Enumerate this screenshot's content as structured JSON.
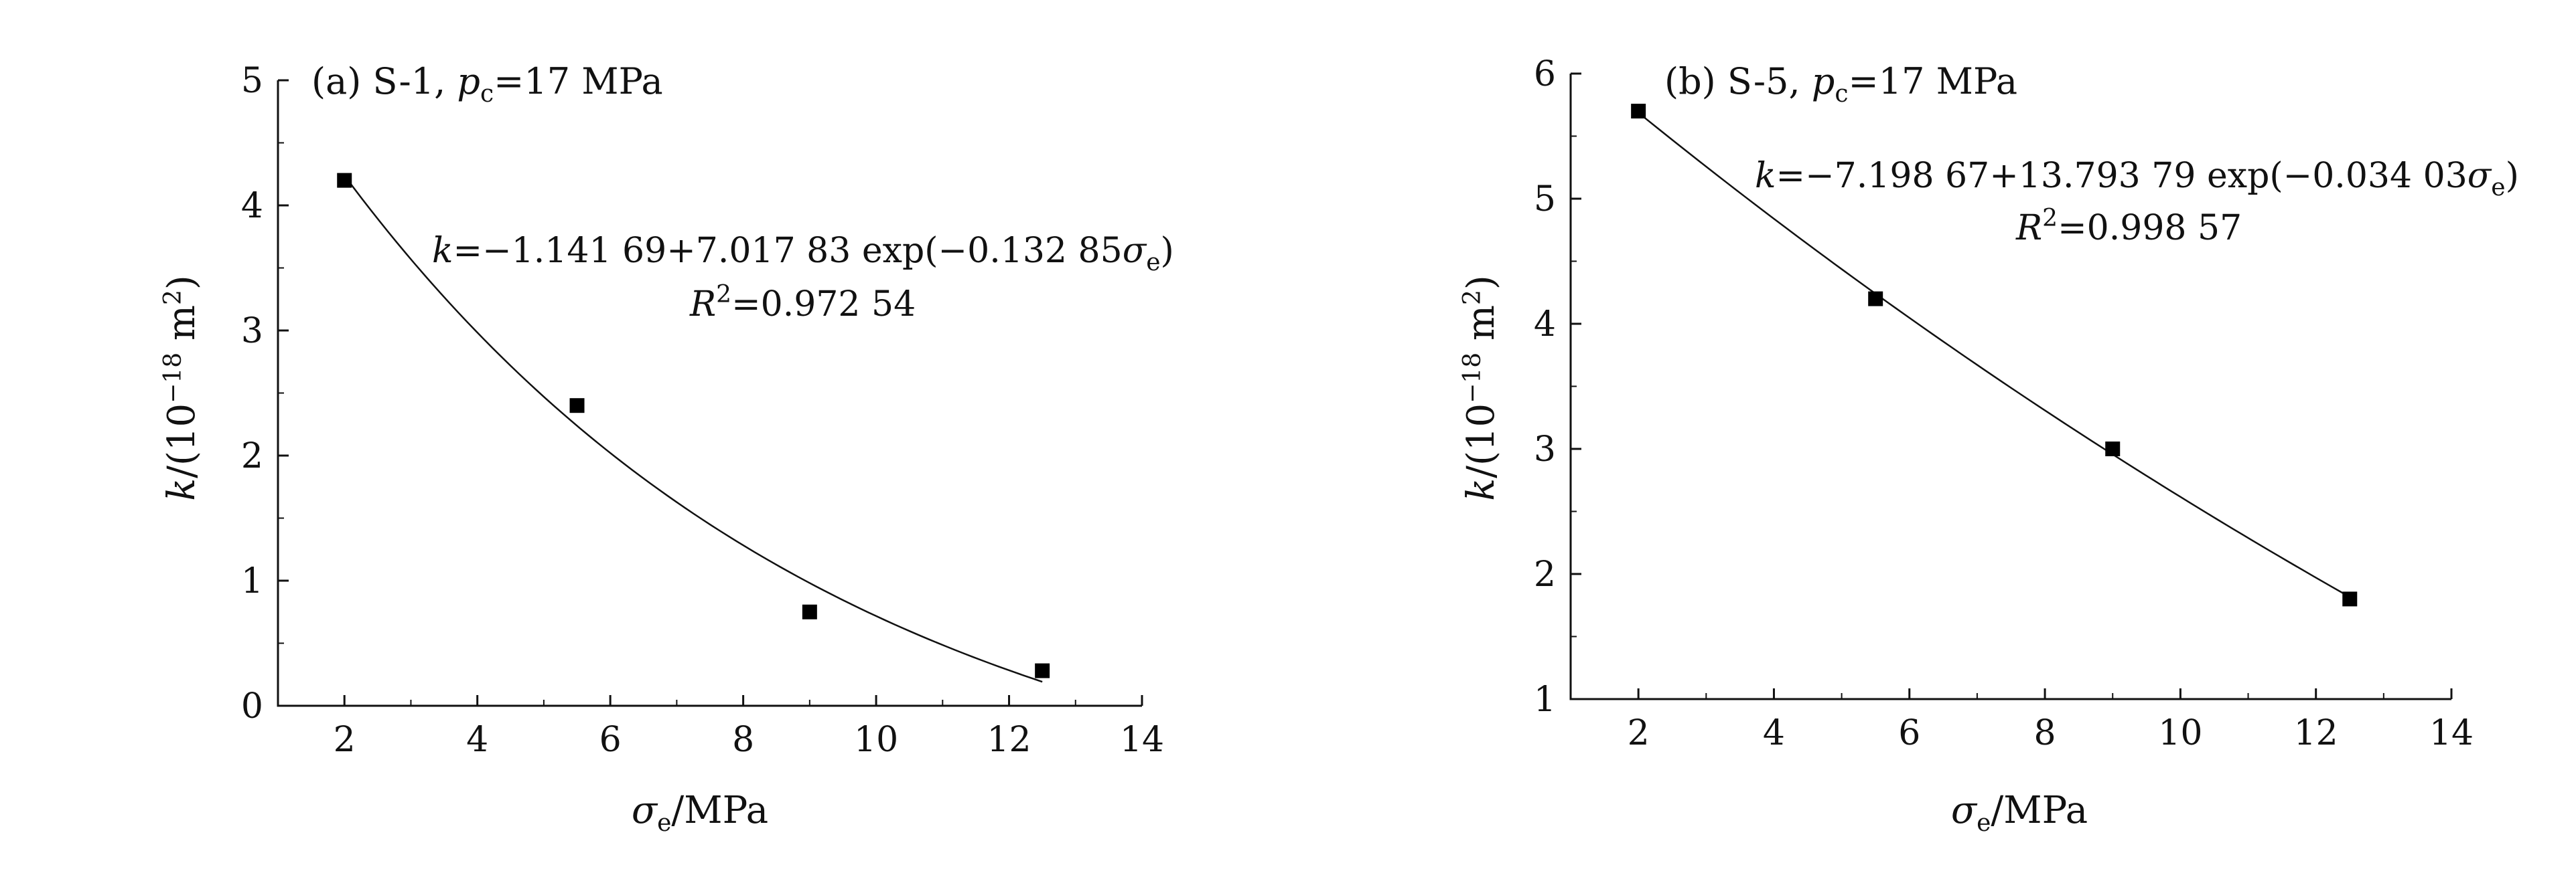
{
  "chart_data": [
    {
      "type": "scatter",
      "panel": "(a) S-1, ",
      "pc_symbol": "p",
      "pc_sub": "c",
      "pc_value": "=17 MPa",
      "equation": {
        "k": "k",
        "body": "=−1.141 69+7.017 83 exp(−0.132 85",
        "sigma": "σ",
        "sub": "e",
        "close": ")"
      },
      "r2": {
        "R": "R",
        "sup": "2",
        "value": "=0.972 54"
      },
      "xlabel": {
        "sigma": "σ",
        "sub": "e",
        "unit": "/MPa"
      },
      "ylabel": {
        "k": "k",
        "pre": "/(10",
        "exp": "−18",
        "mid": " m",
        "sq": "2",
        "close": ")"
      },
      "xlim": [
        1,
        14
      ],
      "ylim": [
        0,
        5
      ],
      "xticks": [
        "2",
        "4",
        "6",
        "8",
        "10",
        "12",
        "14"
      ],
      "yticks": [
        "0",
        "1",
        "2",
        "3",
        "4",
        "5"
      ],
      "xtick_values": [
        2,
        4,
        6,
        8,
        10,
        12,
        14
      ],
      "ytick_values": [
        0,
        1,
        2,
        3,
        4,
        5
      ],
      "x": [
        2,
        5.5,
        9,
        12.5
      ],
      "y": [
        4.2,
        2.4,
        0.75,
        0.28
      ],
      "fit": {
        "a": -1.14169,
        "b": 7.01783,
        "c": -0.13285,
        "x_range": [
          2,
          12.5
        ]
      }
    },
    {
      "type": "scatter",
      "panel": "(b) S-5, ",
      "pc_symbol": "p",
      "pc_sub": "c",
      "pc_value": "=17 MPa",
      "equation": {
        "k": "k",
        "body": "=−7.198 67+13.793 79 exp(−0.034 03",
        "sigma": "σ",
        "sub": "e",
        "close": ")"
      },
      "r2": {
        "R": "R",
        "sup": "2",
        "value": "=0.998 57"
      },
      "xlabel": {
        "sigma": "σ",
        "sub": "e",
        "unit": "/MPa"
      },
      "ylabel": {
        "k": "k",
        "pre": "/(10",
        "exp": "−18",
        "mid": " m",
        "sq": "2",
        "close": ")"
      },
      "xlim": [
        1,
        14
      ],
      "ylim": [
        1,
        6
      ],
      "xticks": [
        "2",
        "4",
        "6",
        "8",
        "10",
        "12",
        "14"
      ],
      "yticks": [
        "1",
        "2",
        "3",
        "4",
        "5",
        "6"
      ],
      "xtick_values": [
        2,
        4,
        6,
        8,
        10,
        12,
        14
      ],
      "ytick_values": [
        1,
        2,
        3,
        4,
        5,
        6
      ],
      "x": [
        2,
        5.5,
        9,
        12.5
      ],
      "y": [
        5.7,
        4.2,
        3.0,
        1.8
      ],
      "fit": {
        "a": -7.19867,
        "b": 13.79379,
        "c": -0.03403,
        "x_range": [
          2,
          12.5
        ]
      }
    }
  ]
}
